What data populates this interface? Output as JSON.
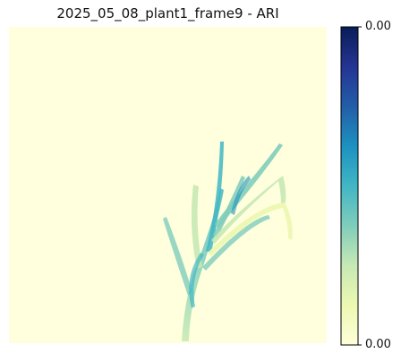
{
  "chart_data": {
    "type": "heatmap",
    "title": "2025_05_08_plant1_frame9 - ARI",
    "xlabel": "",
    "ylabel": "",
    "axes_visible": false,
    "colormap": "YlGnBu",
    "background_value_color": "#ffffdd",
    "colorbar": {
      "orientation": "vertical",
      "position": "right",
      "tick_labels": [
        "0.00",
        "0.00"
      ],
      "stops": [
        "#081d58",
        "#253494",
        "#225ea8",
        "#1d91c0",
        "#41b6c4",
        "#7fcdbb",
        "#c7e9b4",
        "#edf8b1",
        "#ffffd9"
      ]
    },
    "subject": "plant"
  }
}
